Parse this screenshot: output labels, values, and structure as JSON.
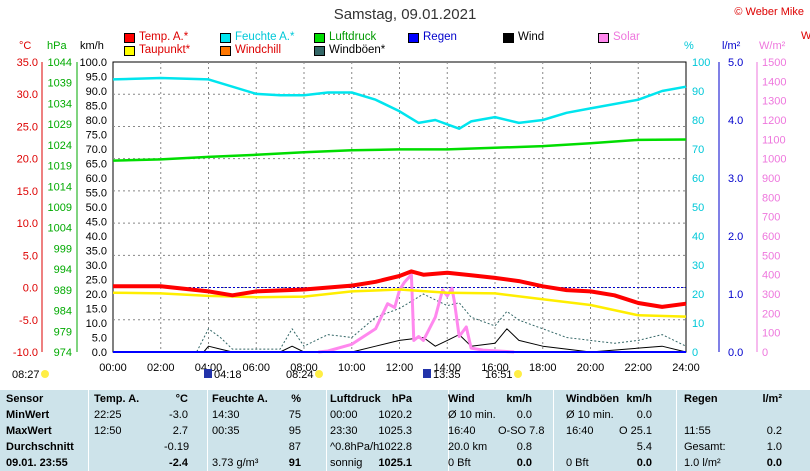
{
  "title": "Samstag, 09.01.2021",
  "credit": "© Weber Mike",
  "legend": [
    {
      "label": "Temp. A.*",
      "color": "#ff0000"
    },
    {
      "label": "Feuchte A.*",
      "color": "#00e5ee"
    },
    {
      "label": "Luftdruck",
      "color": "#00dd00"
    },
    {
      "label": "Regen",
      "color": "#0000ff"
    },
    {
      "label": "Wind",
      "color": "#000000"
    },
    {
      "label": "Solar",
      "color": "#ff88ee"
    },
    {
      "label": "Taupunkt*",
      "color": "#ffff00"
    },
    {
      "label": "Windchill",
      "color": "#ff7700"
    },
    {
      "label": "Windböen*",
      "color": "#336666"
    }
  ],
  "units": {
    "temp": "°C",
    "pressure": "hPa",
    "wind": "km/h",
    "humidity": "%",
    "rain": "l/m²",
    "solar": "W/m²",
    "partial": "W"
  },
  "axes": {
    "temp": [
      "35.0",
      "30.0",
      "25.0",
      "20.0",
      "15.0",
      "10.0",
      "5.0",
      "0.0",
      "-5.0",
      "-10.0"
    ],
    "pressure": [
      "1044",
      "1039",
      "1034",
      "1029",
      "1024",
      "1019",
      "1014",
      "1009",
      "1004",
      "999",
      "994",
      "989",
      "984",
      "979",
      "974"
    ],
    "wind": [
      "100.0",
      "95.0",
      "90.0",
      "85.0",
      "80.0",
      "75.0",
      "70.0",
      "65.0",
      "60.0",
      "55.0",
      "50.0",
      "45.0",
      "40.0",
      "35.0",
      "30.0",
      "25.0",
      "20.0",
      "15.0",
      "10.0",
      "5.0",
      "0.0"
    ],
    "humidity": [
      "100",
      "90",
      "80",
      "70",
      "60",
      "50",
      "40",
      "30",
      "20",
      "10",
      "0"
    ],
    "rain": [
      "5.0",
      "4.0",
      "3.0",
      "2.0",
      "1.0",
      "0.0"
    ],
    "solar": [
      "1500",
      "1400",
      "1300",
      "1200",
      "1100",
      "1000",
      "900",
      "800",
      "700",
      "600",
      "500",
      "400",
      "300",
      "200",
      "100",
      "0"
    ],
    "time": [
      "00:00",
      "02:00",
      "04:00",
      "06:00",
      "08:00",
      "10:00",
      "12:00",
      "14:00",
      "16:00",
      "18:00",
      "20:00",
      "22:00",
      "24:00"
    ]
  },
  "sun_markers": [
    {
      "label": "08:27",
      "kind": "sun"
    },
    {
      "label": "04:18",
      "kind": "moon"
    },
    {
      "label": "08:24",
      "kind": "sun"
    },
    {
      "label": "13:35",
      "kind": "moon"
    },
    {
      "label": "16:51",
      "kind": "sun"
    }
  ],
  "chart_data": {
    "type": "line",
    "x_unit": "hour",
    "series": [
      {
        "name": "Temp. A.*",
        "unit": "°C",
        "x": [
          0,
          2,
          4,
          5,
          6,
          8,
          10,
          11,
          12,
          12.5,
          13,
          14,
          15,
          16,
          17,
          18,
          19,
          20,
          21,
          22,
          23,
          24
        ],
        "y": [
          0.2,
          0.2,
          -0.6,
          -1.2,
          -0.6,
          -0.3,
          0.3,
          0.9,
          1.8,
          2.5,
          2.0,
          2.3,
          1.9,
          1.5,
          1.0,
          0.2,
          -0.4,
          -0.6,
          -1.2,
          -2.4,
          -3.0,
          -2.5
        ]
      },
      {
        "name": "Taupunkt*",
        "unit": "°C",
        "x": [
          0,
          2,
          4,
          6,
          8,
          10,
          12,
          14,
          16,
          18,
          20,
          22,
          24
        ],
        "y": [
          -0.8,
          -0.9,
          -1.3,
          -1.5,
          -1.4,
          -0.6,
          -0.3,
          -0.8,
          -0.9,
          -1.8,
          -2.7,
          -4.3,
          -4.5
        ]
      },
      {
        "name": "Feuchte A.*",
        "unit": "%",
        "x": [
          0,
          2,
          4,
          6,
          7,
          8,
          9,
          10,
          11,
          12,
          12.8,
          13.5,
          14.5,
          15,
          16,
          17,
          18,
          19,
          20,
          22,
          23,
          24
        ],
        "y": [
          94,
          94.5,
          94,
          89,
          88.5,
          88.5,
          89.5,
          89.5,
          87,
          83,
          79,
          80,
          77,
          79.5,
          81,
          79,
          80,
          82.5,
          84,
          87,
          90,
          91.5
        ]
      },
      {
        "name": "Luftdruck",
        "unit": "hPa",
        "x": [
          0,
          2,
          4,
          6,
          8,
          10,
          12,
          14,
          16,
          18,
          20,
          22,
          24
        ],
        "y": [
          1020.2,
          1020.5,
          1021.1,
          1021.6,
          1022.2,
          1022.7,
          1022.9,
          1022.9,
          1023.3,
          1023.7,
          1024.4,
          1025.2,
          1025.3
        ]
      },
      {
        "name": "Wind",
        "unit": "km/h",
        "x": [
          0,
          3.8,
          4,
          4.5,
          5,
          7,
          7.5,
          8,
          9,
          10,
          11,
          12,
          13,
          13.5,
          14,
          14.5,
          15,
          16,
          16.5,
          17,
          18,
          19,
          20,
          23,
          24
        ],
        "y": [
          0,
          0,
          2,
          1,
          0,
          0,
          2,
          0,
          0,
          0,
          2,
          4,
          5,
          2,
          4,
          6,
          2,
          3,
          8,
          4,
          2,
          1,
          0,
          2,
          0
        ]
      },
      {
        "name": "Windböen*",
        "unit": "km/h",
        "x": [
          0,
          3.5,
          4,
          4.5,
          5,
          7,
          7.5,
          8,
          9,
          10,
          11,
          12,
          13,
          13.5,
          14,
          14.5,
          15,
          16,
          16.5,
          17,
          18,
          19,
          20,
          21,
          22,
          23,
          24
        ],
        "y": [
          0,
          0,
          8,
          5,
          1,
          1,
          8,
          2,
          6,
          5,
          12,
          15,
          20,
          18,
          16,
          17,
          12,
          9,
          14,
          11,
          8,
          5,
          4,
          3,
          4,
          6,
          2
        ]
      },
      {
        "name": "Solar",
        "unit": "W/m²",
        "x": [
          8.6,
          9,
          10,
          11,
          11.5,
          11.8,
          12,
          12.2,
          12.5,
          12.6,
          12.8,
          13,
          13.5,
          13.8,
          14,
          14.2,
          14.3,
          14.5,
          14.8,
          15,
          15.5,
          16.8
        ],
        "y": [
          0,
          5,
          40,
          120,
          250,
          230,
          320,
          360,
          400,
          60,
          80,
          60,
          180,
          320,
          290,
          330,
          260,
          80,
          130,
          20,
          10,
          0
        ]
      },
      {
        "name": "Regen",
        "unit": "l/m²",
        "x": [
          0,
          24
        ],
        "y": [
          0,
          0
        ]
      }
    ]
  },
  "table": {
    "headers": [
      "Sensor",
      "Temp. A.",
      "°C",
      "Feuchte A.",
      "%",
      "Luftdruck",
      "hPa",
      "Wind",
      "km/h",
      "Windböen",
      "km/h",
      "Regen",
      "l/m²"
    ],
    "rows": [
      {
        "label": "MinWert",
        "cells": [
          "22:25",
          "-3.0",
          "14:30",
          "75",
          "00:00",
          "1020.2",
          "Ø 10 min.",
          "0.0",
          "Ø 10 min.",
          "0.0",
          "",
          ""
        ]
      },
      {
        "label": "MaxWert",
        "cells": [
          "12:50",
          "2.7",
          "00:35",
          "95",
          "23:30",
          "1025.3",
          "16:40",
          "O-SO 7.8",
          "16:40",
          "O 25.1",
          "11:55",
          "0.2"
        ]
      },
      {
        "label": "Durchschnitt",
        "cells": [
          "",
          "-0.19",
          "",
          "87",
          "^0.8hPa/h",
          "1022.8",
          "20.0 km",
          "0.8",
          "",
          "5.4",
          "Gesamt:",
          "1.0"
        ]
      },
      {
        "label": "09.01. 23:55",
        "cells": [
          "",
          "-2.4",
          "3.73 g/m³",
          "91",
          "sonnig",
          "1025.1",
          "0 Bft",
          "0.0",
          "0 Bft",
          "0.0",
          "1.0 l/m²",
          "0.0"
        ]
      }
    ]
  }
}
